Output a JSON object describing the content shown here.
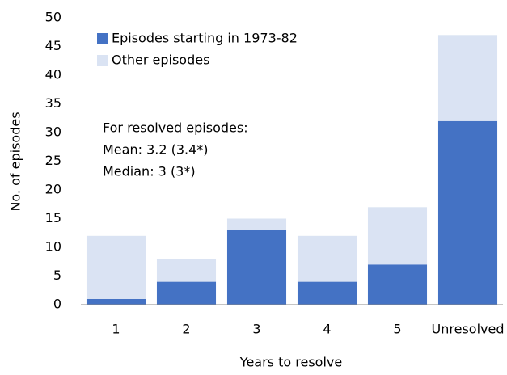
{
  "chart_data": {
    "type": "stacked_bar",
    "xlabel": "Years to resolve",
    "ylabel": "No. of episodes",
    "categories": [
      "1",
      "2",
      "3",
      "4",
      "5",
      "Unresolved"
    ],
    "series": [
      {
        "name": "Episodes starting in 1973-82",
        "color": "#4472c4",
        "values": [
          1,
          4,
          13,
          4,
          7,
          32
        ]
      },
      {
        "name": "Other episodes",
        "color": "#dae3f3",
        "values": [
          11,
          4,
          2,
          8,
          10,
          15
        ]
      }
    ],
    "ylim": [
      0,
      50
    ],
    "yticks": [
      0,
      5,
      10,
      15,
      20,
      25,
      30,
      35,
      40,
      45,
      50
    ],
    "legend": "upper left",
    "annotation": [
      "For resolved episodes:",
      "Mean: 3.2 (3.4*)",
      "Median: 3 (3*)"
    ]
  }
}
